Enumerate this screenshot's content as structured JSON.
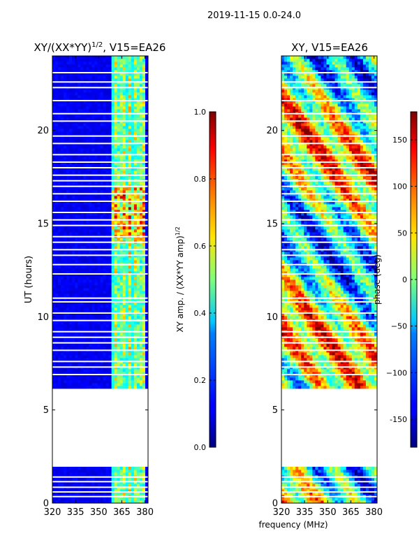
{
  "suptitle": "2019-11-15 0.0-24.0",
  "xlabel_shared": "frequency (MHz)",
  "chart_data": [
    {
      "type": "heatmap",
      "title": "XY/(XX*YY)",
      "title_sup": "1/2",
      "title_suffix": ", V15=EA26",
      "ylabel": "UT (hours)",
      "xlim": [
        320,
        382
      ],
      "ylim": [
        0,
        24
      ],
      "xticks": [
        "320",
        "335",
        "350",
        "365",
        "380"
      ],
      "yticks": [
        "0",
        "5",
        "10",
        "15",
        "20"
      ],
      "colorbar": {
        "label": "XY amp. / (XX*YY amp)",
        "label_sup": "1/2",
        "range": [
          0.0,
          1.0
        ],
        "ticks": [
          "0.0",
          "0.2",
          "0.4",
          "0.6",
          "0.8",
          "1.0"
        ],
        "colormap": "jet"
      },
      "data_gaps_hours": [
        [
          2.0,
          6.1
        ]
      ],
      "notes": "Mostly low amplitude (~0.05) below 360 MHz; bright vertical bands near 360-380 MHz with values up to ~0.9"
    },
    {
      "type": "heatmap",
      "title": "XY, V15=EA26",
      "ylabel": "",
      "xlim": [
        320,
        382
      ],
      "ylim": [
        0,
        24
      ],
      "xticks": [
        "320",
        "335",
        "350",
        "365",
        "380"
      ],
      "yticks": [
        "0",
        "5",
        "10",
        "15",
        "20"
      ],
      "colorbar": {
        "label": "phase (deg)",
        "range": [
          -180,
          180
        ],
        "ticks": [
          "-150",
          "−100",
          "−50",
          "0",
          "50",
          "100",
          "150"
        ],
        "colormap": "jet"
      },
      "data_gaps_hours": [
        [
          2.0,
          6.1
        ]
      ],
      "notes": "Phase fluctuates across the full range; noisy patches"
    }
  ]
}
